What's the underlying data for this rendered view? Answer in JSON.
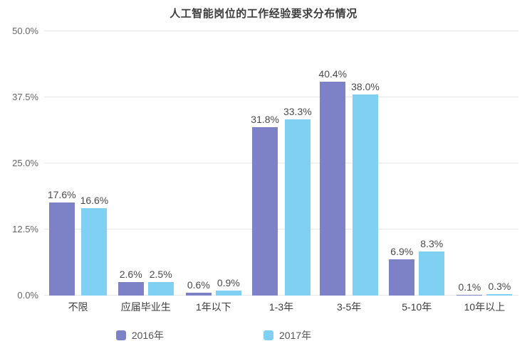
{
  "chart_data": {
    "type": "bar",
    "title": "人工智能岗位的工作经验要求分布情况",
    "categories": [
      "不限",
      "应届毕业生",
      "1年以下",
      "1-3年",
      "3-5年",
      "5-10年",
      "10年以上"
    ],
    "series": [
      {
        "name": "2016年",
        "color": "#7d82c6",
        "values": [
          17.6,
          2.6,
          0.6,
          31.8,
          40.4,
          6.9,
          0.1
        ]
      },
      {
        "name": "2017年",
        "color": "#7fd0f2",
        "values": [
          16.6,
          2.5,
          0.9,
          33.3,
          38.0,
          8.3,
          0.3
        ]
      }
    ],
    "xlabel": "",
    "ylabel": "",
    "ylim": [
      0,
      50
    ],
    "y_ticks": [
      "0.0%",
      "12.5%",
      "25.0%",
      "37.5%",
      "50.0%"
    ],
    "grid": true,
    "legend_position": "bottom",
    "value_label_format": "one_decimal_percent"
  },
  "colors": {
    "title_text": "#3d3d3d",
    "axis_text": "#666666",
    "value_label_text": "#4a4a4a",
    "gridline": "#e6e6e6",
    "background": "#ffffff"
  }
}
